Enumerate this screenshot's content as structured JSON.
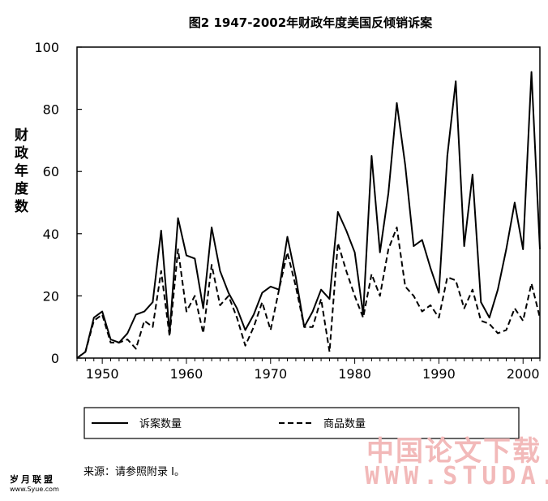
{
  "chart_data": {
    "type": "line",
    "title": "图2  1947-2002年财政年度美国反倾销诉案",
    "ylabel": "财政年度数",
    "xlabel": "",
    "xlim": [
      1947,
      2002
    ],
    "ylim": [
      0,
      100
    ],
    "x_ticks": [
      1950,
      1960,
      1970,
      1980,
      1990,
      2000
    ],
    "y_ticks": [
      0,
      20,
      40,
      60,
      80,
      100
    ],
    "grid": false,
    "legend_placement": "bottom",
    "x": [
      1947,
      1948,
      1949,
      1950,
      1951,
      1952,
      1953,
      1954,
      1955,
      1956,
      1957,
      1958,
      1959,
      1960,
      1961,
      1962,
      1963,
      1964,
      1965,
      1966,
      1967,
      1968,
      1969,
      1970,
      1971,
      1972,
      1973,
      1974,
      1975,
      1976,
      1977,
      1978,
      1979,
      1980,
      1981,
      1982,
      1983,
      1984,
      1985,
      1986,
      1987,
      1988,
      1989,
      1990,
      1991,
      1992,
      1993,
      1994,
      1995,
      1996,
      1997,
      1998,
      1999,
      2000,
      2001,
      2002
    ],
    "series": [
      {
        "name": "诉案数量",
        "style": "solid",
        "values": [
          0,
          2,
          13,
          15,
          6,
          5,
          8,
          14,
          15,
          18,
          41,
          8,
          45,
          33,
          32,
          16,
          42,
          28,
          21,
          16,
          9,
          14,
          21,
          23,
          22,
          39,
          26,
          10,
          15,
          22,
          19,
          47,
          41,
          34,
          14,
          65,
          34,
          53,
          82,
          62,
          36,
          38,
          29,
          21,
          65,
          89,
          36,
          59,
          18,
          13,
          22,
          35,
          50,
          35,
          92,
          35
        ]
      },
      {
        "name": "商品数量",
        "style": "dashed",
        "values": [
          0,
          2,
          12,
          14,
          5,
          5,
          6,
          3,
          12,
          10,
          28,
          7,
          35,
          15,
          20,
          8,
          30,
          17,
          20,
          13,
          4,
          10,
          18,
          9,
          22,
          34,
          23,
          10,
          10,
          19,
          2,
          37,
          28,
          20,
          13,
          27,
          20,
          35,
          42,
          23,
          20,
          15,
          17,
          13,
          26,
          25,
          16,
          22,
          12,
          11,
          8,
          9,
          16,
          12,
          24,
          13
        ]
      }
    ],
    "colors": {
      "line": "#000000",
      "background": "#ffffff"
    }
  },
  "source_note": "来源：请参照附录 I。",
  "logo": {
    "name": "岁月联盟",
    "url": "www.Syue.com"
  },
  "watermark": {
    "line1": "中国论文下载",
    "line2": "WWW.STUDA."
  }
}
